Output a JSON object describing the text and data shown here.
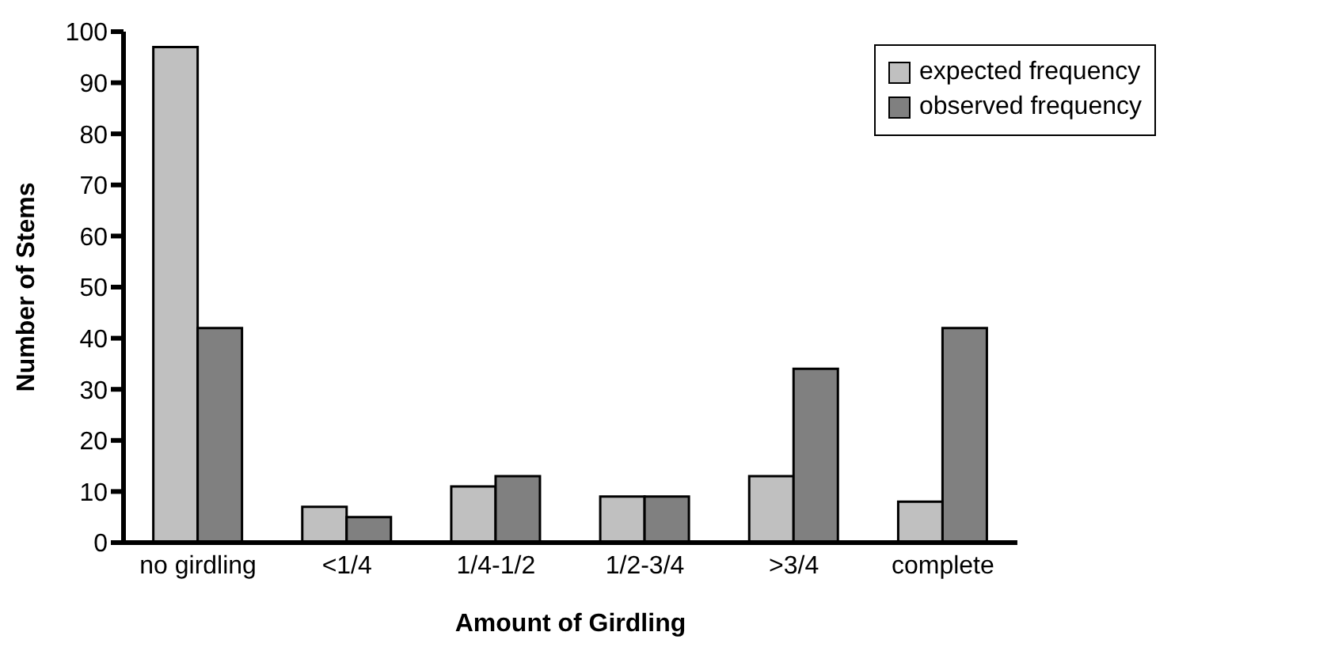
{
  "chart_data": {
    "type": "bar",
    "xlabel": "Amount of Girdling",
    "ylabel": "Number of Stems",
    "categories": [
      "no girdling",
      "<1/4",
      "1/4-1/2",
      "1/2-3/4",
      ">3/4",
      "complete"
    ],
    "series": [
      {
        "name": "expected frequency",
        "color": "#c0c0c0",
        "values": [
          97,
          7,
          11,
          9,
          13,
          8
        ]
      },
      {
        "name": "observed frequency",
        "color": "#808080",
        "values": [
          42,
          5,
          13,
          9,
          34,
          42
        ]
      }
    ],
    "ylim": [
      0,
      100
    ],
    "yticks": [
      0,
      10,
      20,
      30,
      40,
      50,
      60,
      70,
      80,
      90,
      100
    ],
    "grid": false,
    "legend": "top right"
  }
}
